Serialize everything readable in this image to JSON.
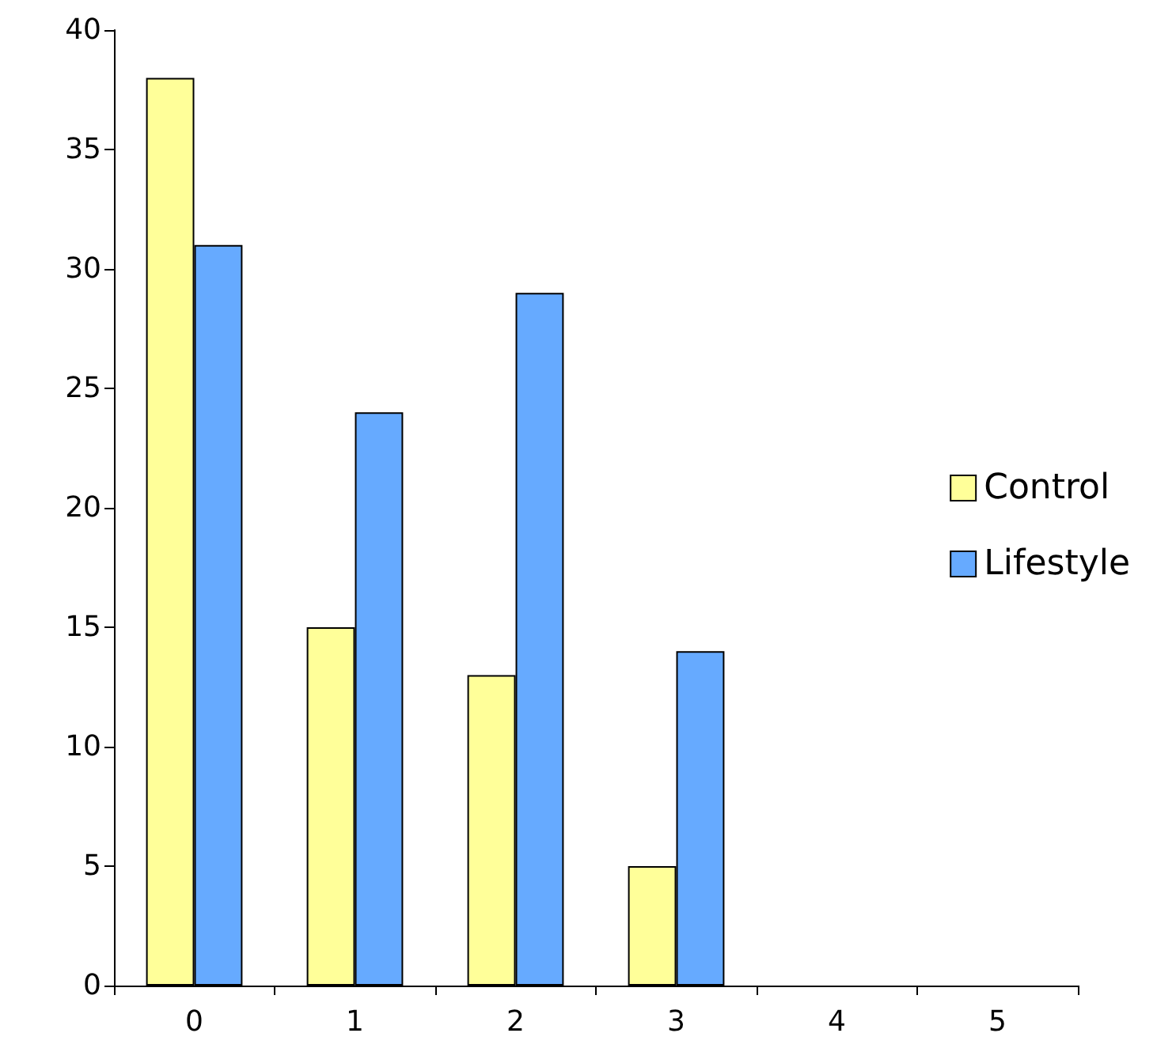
{
  "chart_data": {
    "type": "bar",
    "categories": [
      "0",
      "1",
      "2",
      "3",
      "4",
      "5"
    ],
    "series": [
      {
        "name": "Control",
        "color": "#ffff99",
        "values": [
          38,
          15,
          13,
          5,
          null,
          null
        ]
      },
      {
        "name": "Lifestyle",
        "color": "#66aaff",
        "values": [
          31,
          24,
          29,
          14,
          null,
          null
        ]
      }
    ],
    "ylim": [
      0,
      40
    ],
    "yticks": [
      0,
      5,
      10,
      15,
      20,
      25,
      30,
      35,
      40
    ],
    "grid": false,
    "legend": "right"
  }
}
